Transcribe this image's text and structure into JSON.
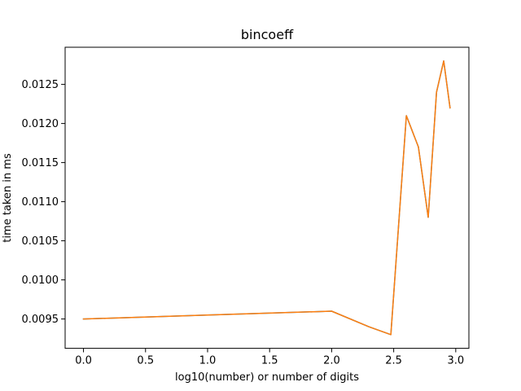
{
  "chart_data": {
    "type": "line",
    "title": "bincoeff",
    "xlabel": "log10(number) or number of digits",
    "ylabel": "time taken in ms",
    "xlim": [
      -0.148,
      3.106
    ],
    "ylim": [
      0.009125,
      0.012975
    ],
    "grid": false,
    "x_ticks": [
      {
        "value": 0.0,
        "label": "0.0"
      },
      {
        "value": 0.5,
        "label": "0.5"
      },
      {
        "value": 1.0,
        "label": "1.0"
      },
      {
        "value": 1.5,
        "label": "1.5"
      },
      {
        "value": 2.0,
        "label": "2.0"
      },
      {
        "value": 2.5,
        "label": "2.5"
      },
      {
        "value": 3.0,
        "label": "3.0"
      }
    ],
    "y_ticks": [
      {
        "value": 0.0095,
        "label": "0.0095"
      },
      {
        "value": 0.01,
        "label": "0.0100"
      },
      {
        "value": 0.0105,
        "label": "0.0105"
      },
      {
        "value": 0.011,
        "label": "0.0110"
      },
      {
        "value": 0.0115,
        "label": "0.0115"
      },
      {
        "value": 0.012,
        "label": "0.0120"
      },
      {
        "value": 0.0125,
        "label": "0.0125"
      }
    ],
    "series": [
      {
        "color": "#1f77b4",
        "x": [
          0.0,
          1.0,
          2.0,
          2.301,
          2.477,
          2.602,
          2.699,
          2.778,
          2.845,
          2.903,
          2.954
        ],
        "y": [
          0.0095,
          0.00955,
          0.0096,
          0.0094,
          0.0093,
          0.0121,
          0.0117,
          0.0108,
          0.0124,
          0.0128,
          0.0122
        ]
      },
      {
        "color": "#ff7f0e",
        "x": [
          0.0,
          1.0,
          2.0,
          2.301,
          2.477,
          2.602,
          2.699,
          2.778,
          2.845,
          2.903,
          2.954
        ],
        "y": [
          0.0095,
          0.00955,
          0.0096,
          0.0094,
          0.0093,
          0.0121,
          0.0117,
          0.0108,
          0.0124,
          0.0128,
          0.0122
        ]
      }
    ]
  }
}
